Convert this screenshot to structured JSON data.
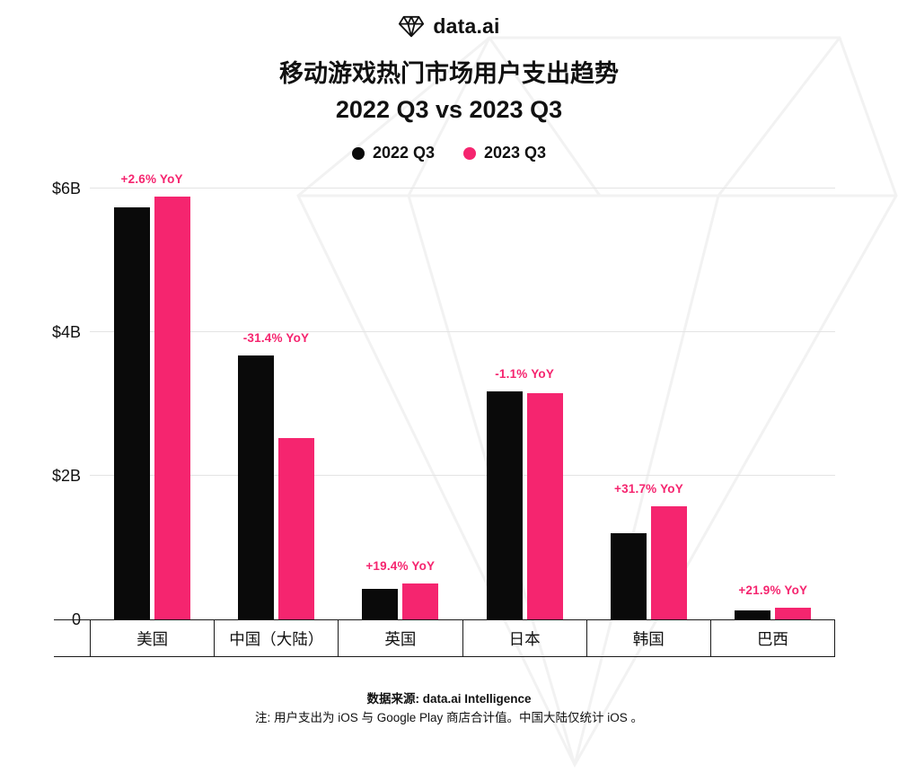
{
  "brand": {
    "logo_text": "data.ai"
  },
  "title": {
    "line1": "移动游戏热门市场用户支出趋势",
    "line2": "2022 Q3 vs 2023 Q3"
  },
  "legend": [
    {
      "label": "2022 Q3",
      "color": "#0A0A0A"
    },
    {
      "label": "2023 Q3",
      "color": "#F5256F"
    }
  ],
  "colors": {
    "accent_pink": "#F5256F",
    "bar_black": "#0A0A0A",
    "gridline": "#E4E4E4",
    "axis_line": "#1A1A1A"
  },
  "y_axis": {
    "ticks": [
      {
        "label": "$6B",
        "value": 6
      },
      {
        "label": "$4B",
        "value": 4
      },
      {
        "label": "$2B",
        "value": 2
      },
      {
        "label": "0",
        "value": 0
      }
    ]
  },
  "chart_data": {
    "type": "bar",
    "title": "移动游戏热门市场用户支出趋势",
    "subtitle": "2022 Q3 vs 2023 Q3",
    "categories": [
      "美国",
      "中国（大陆）",
      "英国",
      "日本",
      "韩国",
      "巴西"
    ],
    "series": [
      {
        "name": "2022 Q3",
        "color": "#0A0A0A",
        "values": [
          5.74,
          3.67,
          0.42,
          3.18,
          1.2,
          0.13
        ]
      },
      {
        "name": "2023 Q3",
        "color": "#F5256F",
        "values": [
          5.89,
          2.52,
          0.5,
          3.15,
          1.58,
          0.16
        ]
      }
    ],
    "yoy_labels": [
      "+2.6% YoY",
      "-31.4% YoY",
      "+19.4% YoY",
      "-1.1% YoY",
      "+31.7% YoY",
      "+21.9% YoY"
    ],
    "value_unit": "$B",
    "ylim": [
      0,
      6.25
    ],
    "grid": "horizontal",
    "legend_position": "top"
  },
  "footer": {
    "source": "数据来源: data.ai Intelligence",
    "note": "注: 用户支出为 iOS 与 Google Play 商店合计值。中国大陆仅统计 iOS 。"
  }
}
